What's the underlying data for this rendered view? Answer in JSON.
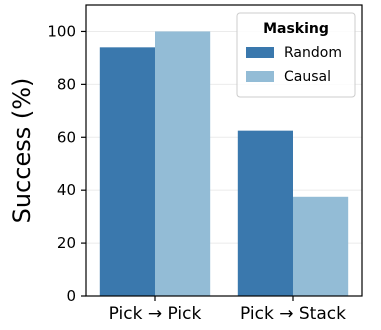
{
  "chart_data": {
    "type": "bar",
    "categories": [
      "Pick → Pick",
      "Pick → Stack"
    ],
    "series": [
      {
        "name": "Random",
        "color": "#3a78ad",
        "values": [
          94,
          62.5
        ]
      },
      {
        "name": "Causal",
        "color": "#93bcd6",
        "values": [
          100,
          37.5
        ]
      }
    ],
    "xlabel": "",
    "ylabel": "Success (%)",
    "ylim": [
      0,
      110
    ],
    "yticks": [
      0,
      20,
      40,
      60,
      80,
      100
    ],
    "grid": "horizontal",
    "legend": {
      "title": "Masking",
      "placement": "top-right"
    }
  }
}
